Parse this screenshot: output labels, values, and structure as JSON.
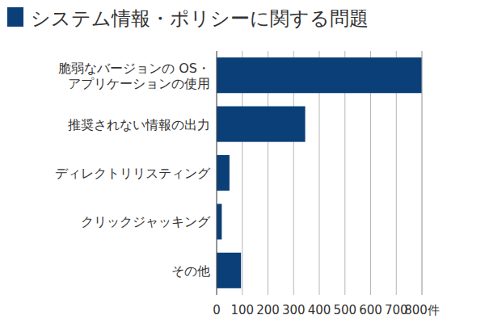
{
  "chart_data": {
    "type": "bar",
    "title": "システム情報・ポリシーに関する問題",
    "orientation": "horizontal",
    "categories": [
      "脆弱なバージョンの OS・\nアプリケーションの使用",
      "推奨されない情報の出力",
      "ディレクトリリスティング",
      "クリックジャッキング",
      "その他"
    ],
    "values": [
      800,
      345,
      50,
      20,
      95
    ],
    "color": "#0b3f78",
    "ylim": [
      0,
      800
    ],
    "yticks": [
      0,
      100,
      200,
      300,
      400,
      500,
      600,
      700,
      {
        "value": 800,
        "label": "800件"
      }
    ],
    "grid": true
  }
}
